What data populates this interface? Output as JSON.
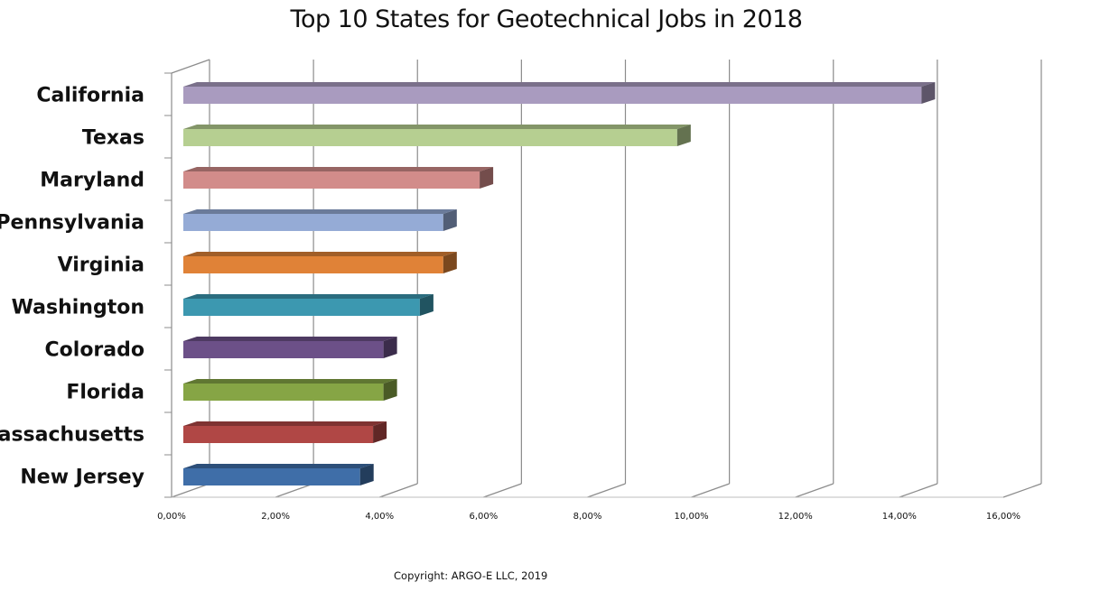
{
  "chart_data": {
    "type": "bar",
    "orientation": "horizontal",
    "style": "3d",
    "title": "Top 10 States for Geotechnical Jobs in 2018",
    "xlabel": "",
    "ylabel": "",
    "categories": [
      "California",
      "Texas",
      "Maryland",
      "Pennsylvania",
      "Virginia",
      "Washington",
      "Colorado",
      "Florida",
      "Massachusetts",
      "New Jersey"
    ],
    "values": [
      14.2,
      9.5,
      5.7,
      5.0,
      5.0,
      4.55,
      3.85,
      3.85,
      3.65,
      3.4
    ],
    "value_unit": "%",
    "xlim": [
      0,
      16
    ],
    "x_ticks": [
      "0,00%",
      "2,00%",
      "4,00%",
      "6,00%",
      "8,00%",
      "10,00%",
      "12,00%",
      "14,00%",
      "16,00%"
    ],
    "grid": true,
    "legend": "none",
    "colors": [
      "#a99bbf",
      "#b6cf91",
      "#d28c8a",
      "#95abd6",
      "#e08237",
      "#3c98b0",
      "#6c5088",
      "#86a545",
      "#b04745",
      "#3f6ea8"
    ]
  },
  "footer": {
    "copyright": "Copyright: ARGO-E LLC, 2019"
  }
}
